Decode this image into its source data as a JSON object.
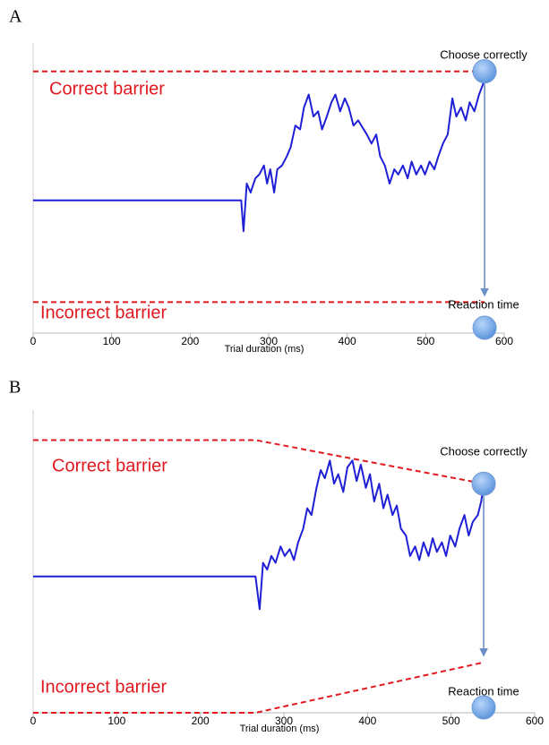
{
  "chart_data": [
    {
      "type": "line",
      "label": "A",
      "xlabel": "Trial duration (ms)",
      "xlim": [
        0,
        600
      ],
      "xticks": [
        0,
        100,
        200,
        300,
        400,
        500,
        600
      ],
      "ylim": [
        -1.03,
        1.22
      ],
      "annotations": [
        "Correct barrier",
        "Incorrect barrier",
        "Choose correctly",
        "Reaction time"
      ],
      "series": [
        {
          "color": "#1f1fd6",
          "dashed": false,
          "x": [
            0,
            265,
            268,
            272,
            277,
            283,
            288,
            294,
            298,
            302,
            307,
            311,
            317,
            323,
            328,
            334,
            340,
            345,
            351,
            357,
            363,
            368,
            374,
            380,
            385,
            391,
            397,
            402,
            408,
            414,
            425,
            431,
            437,
            442,
            448,
            454,
            460,
            465,
            471,
            477,
            482,
            488,
            494,
            499,
            505,
            511,
            516,
            522,
            528,
            534,
            539,
            545,
            551,
            556,
            562,
            568,
            573,
            575
          ],
          "values": [
            0,
            0,
            -0.24,
            0.13,
            0.06,
            0.17,
            0.2,
            0.27,
            0.13,
            0.24,
            0.06,
            0.24,
            0.27,
            0.34,
            0.41,
            0.58,
            0.55,
            0.72,
            0.82,
            0.65,
            0.69,
            0.55,
            0.65,
            0.76,
            0.82,
            0.69,
            0.79,
            0.72,
            0.58,
            0.62,
            0.51,
            0.44,
            0.51,
            0.34,
            0.27,
            0.13,
            0.24,
            0.2,
            0.27,
            0.17,
            0.3,
            0.2,
            0.27,
            0.2,
            0.3,
            0.24,
            0.34,
            0.44,
            0.51,
            0.79,
            0.65,
            0.72,
            0.62,
            0.76,
            0.69,
            0.82,
            0.9,
            1.0
          ]
        },
        {
          "color": "#e0191f",
          "dashed": true,
          "x": [
            0,
            575
          ],
          "values": [
            1.0,
            1.0
          ]
        },
        {
          "color": "#e0191f",
          "dashed": true,
          "x": [
            0,
            575
          ],
          "values": [
            -0.79,
            -0.79
          ]
        }
      ]
    },
    {
      "type": "line",
      "label": "B",
      "xlabel": "Trial duration (ms)",
      "xlim": [
        0,
        600
      ],
      "xticks": [
        0,
        100,
        200,
        300,
        400,
        500,
        600
      ],
      "ylim": [
        -1,
        1.22
      ],
      "annotations": [
        "Correct barrier",
        "Incorrect barrier",
        "Choose correctly",
        "Reaction time"
      ],
      "series": [
        {
          "color": "#1f1fd6",
          "dashed": false,
          "x": [
            0,
            266,
            271,
            275,
            280,
            285,
            290,
            296,
            301,
            307,
            312,
            317,
            323,
            328,
            333,
            339,
            344,
            349,
            355,
            360,
            365,
            371,
            376,
            382,
            387,
            392,
            398,
            403,
            408,
            414,
            419,
            424,
            430,
            435,
            440,
            446,
            451,
            457,
            462,
            467,
            473,
            478,
            483,
            489,
            494,
            499,
            505,
            510,
            516,
            521,
            526,
            532,
            536,
            539
          ],
          "values": [
            0,
            0,
            -0.24,
            0.1,
            0.05,
            0.15,
            0.1,
            0.22,
            0.15,
            0.2,
            0.12,
            0.25,
            0.35,
            0.5,
            0.45,
            0.65,
            0.78,
            0.72,
            0.85,
            0.68,
            0.75,
            0.62,
            0.8,
            0.85,
            0.7,
            0.82,
            0.65,
            0.75,
            0.55,
            0.68,
            0.5,
            0.6,
            0.45,
            0.52,
            0.35,
            0.3,
            0.15,
            0.22,
            0.12,
            0.25,
            0.15,
            0.28,
            0.18,
            0.25,
            0.15,
            0.3,
            0.22,
            0.35,
            0.45,
            0.3,
            0.4,
            0.45,
            0.55,
            0.68
          ]
        },
        {
          "color": "#e0191f",
          "dashed": true,
          "x": [
            0,
            266,
            539
          ],
          "values": [
            1.0,
            1.0,
            0.68
          ]
        },
        {
          "color": "#e0191f",
          "dashed": true,
          "x": [
            0,
            266,
            539
          ],
          "values": [
            -1.0,
            -1.0,
            -0.63
          ]
        }
      ]
    }
  ]
}
